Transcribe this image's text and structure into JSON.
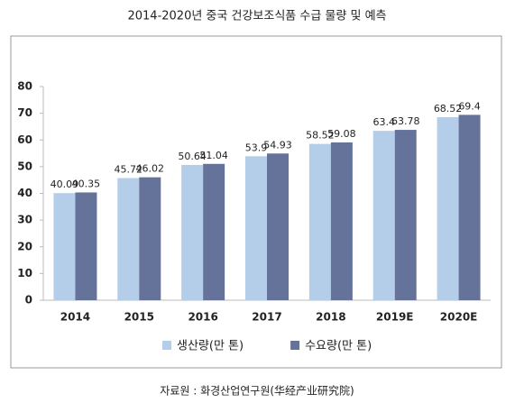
{
  "chart_data": {
    "type": "bar",
    "title": "2014-2020년 중국 건강보조식품 수급 물량 및 예측",
    "source": "자료원 : 화경산업연구원(华经产业研究院)",
    "categories": [
      "2014",
      "2015",
      "2016",
      "2017",
      "2018",
      "2019E",
      "2020E"
    ],
    "series": [
      {
        "name": "생산량(만 톤)",
        "color": "#b4cde9",
        "values": [
          40.09,
          45.72,
          50.64,
          53.9,
          58.52,
          63.4,
          68.52
        ]
      },
      {
        "name": "수요량(만 톤)",
        "color": "#65739a",
        "values": [
          40.35,
          46.02,
          51.04,
          54.93,
          59.08,
          63.78,
          69.4
        ]
      }
    ],
    "ylim": [
      0,
      80
    ],
    "yticks": [
      0,
      10,
      20,
      30,
      40,
      50,
      60,
      70,
      80
    ],
    "grid": false,
    "legend": "bottom"
  }
}
